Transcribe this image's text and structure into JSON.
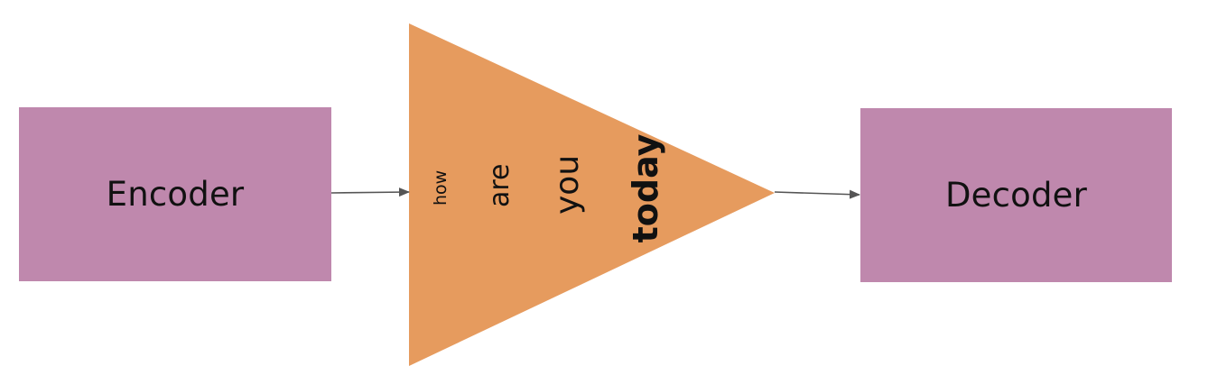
{
  "colors": {
    "box_fill": "#bf88ad",
    "triangle_fill": "#e69b5e",
    "arrow": "#555555",
    "text": "#111111"
  },
  "encoder": {
    "label": "Encoder"
  },
  "decoder": {
    "label": "Decoder"
  },
  "attention": {
    "words": [
      "how",
      "are",
      "you",
      "today"
    ]
  }
}
